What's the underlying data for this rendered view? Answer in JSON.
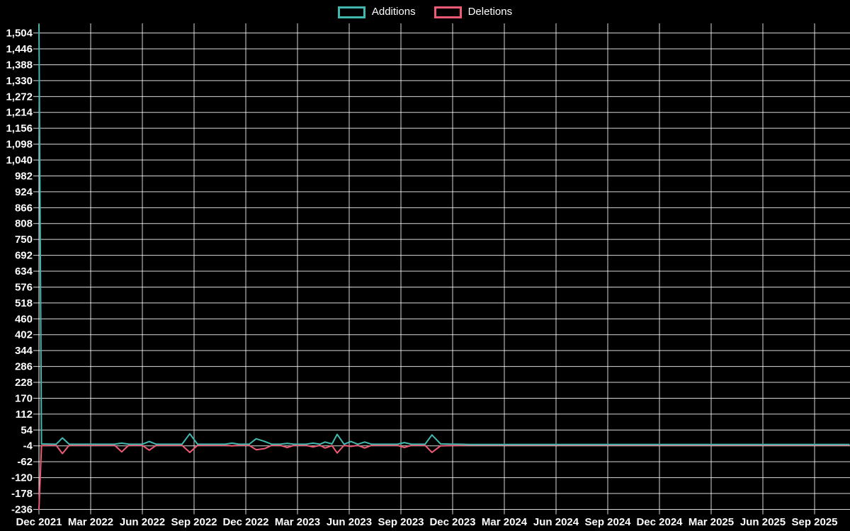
{
  "legend": {
    "items": [
      {
        "label": "Additions",
        "color": "#41b7ae"
      },
      {
        "label": "Deletions",
        "color": "#ef5b75"
      }
    ]
  },
  "chart_data": {
    "type": "line",
    "title": "",
    "legend_position": "top",
    "grid": true,
    "background_color": "#000000",
    "grid_color": "#ffffff",
    "axis_text_color": "#ffffff",
    "x_axis": {
      "unit": "months since Dec 2021",
      "tick_interval_months": 3,
      "tick_labels": [
        "Dec 2021",
        "Mar 2022",
        "Jun 2022",
        "Sep 2022",
        "Dec 2022",
        "Mar 2023",
        "Jun 2023",
        "Sep 2023",
        "Dec 2023",
        "Mar 2024",
        "Jun 2024",
        "Sep 2024",
        "Dec 2024",
        "Mar 2025",
        "Jun 2025",
        "Sep 2025"
      ]
    },
    "y_axis": {
      "min": -236,
      "max": 1504,
      "step": 58,
      "tick_labels": [
        "1,504",
        "1,446",
        "1,388",
        "1,330",
        "1,272",
        "1,214",
        "1,156",
        "1,098",
        "1,040",
        "982",
        "924",
        "866",
        "808",
        "750",
        "692",
        "634",
        "576",
        "518",
        "460",
        "402",
        "344",
        "286",
        "228",
        "170",
        "112",
        "54",
        "-4",
        "-62",
        "-120",
        "-178",
        "-236"
      ]
    },
    "x": [
      0,
      0.15,
      1.0,
      1.36,
      1.75,
      4.4,
      4.8,
      5.2,
      6.0,
      6.4,
      6.8,
      8.3,
      8.75,
      9.2,
      10.8,
      11.2,
      11.6,
      12.2,
      12.6,
      13.1,
      13.5,
      14.0,
      14.4,
      14.8,
      15.5,
      15.9,
      16.3,
      16.6,
      17.0,
      17.3,
      17.7,
      18.1,
      18.5,
      18.9,
      19.3,
      20.8,
      21.2,
      21.6,
      22.4,
      22.8,
      23.3,
      24.4,
      25.0,
      47.0
    ],
    "series": [
      {
        "name": "Additions",
        "color": "#41b7ae",
        "values": [
          1535,
          3,
          2,
          25,
          2,
          2,
          6,
          2,
          2,
          12,
          2,
          2,
          40,
          2,
          2,
          6,
          2,
          2,
          22,
          12,
          2,
          2,
          5,
          2,
          2,
          6,
          2,
          10,
          3,
          38,
          2,
          12,
          2,
          10,
          2,
          2,
          8,
          2,
          2,
          36,
          3,
          2,
          1,
          1
        ]
      },
      {
        "name": "Deletions",
        "color": "#ef5b75",
        "values": [
          -236,
          -3,
          -2,
          -32,
          -2,
          -2,
          -26,
          -2,
          -2,
          -20,
          -2,
          -2,
          -28,
          -2,
          -2,
          -4,
          -2,
          -2,
          -18,
          -14,
          -2,
          -2,
          -10,
          -2,
          -2,
          -8,
          -2,
          -12,
          -3,
          -30,
          -2,
          -6,
          -2,
          -12,
          -2,
          -2,
          -10,
          -2,
          -2,
          -28,
          -4,
          -2,
          -1,
          -1
        ]
      }
    ]
  }
}
